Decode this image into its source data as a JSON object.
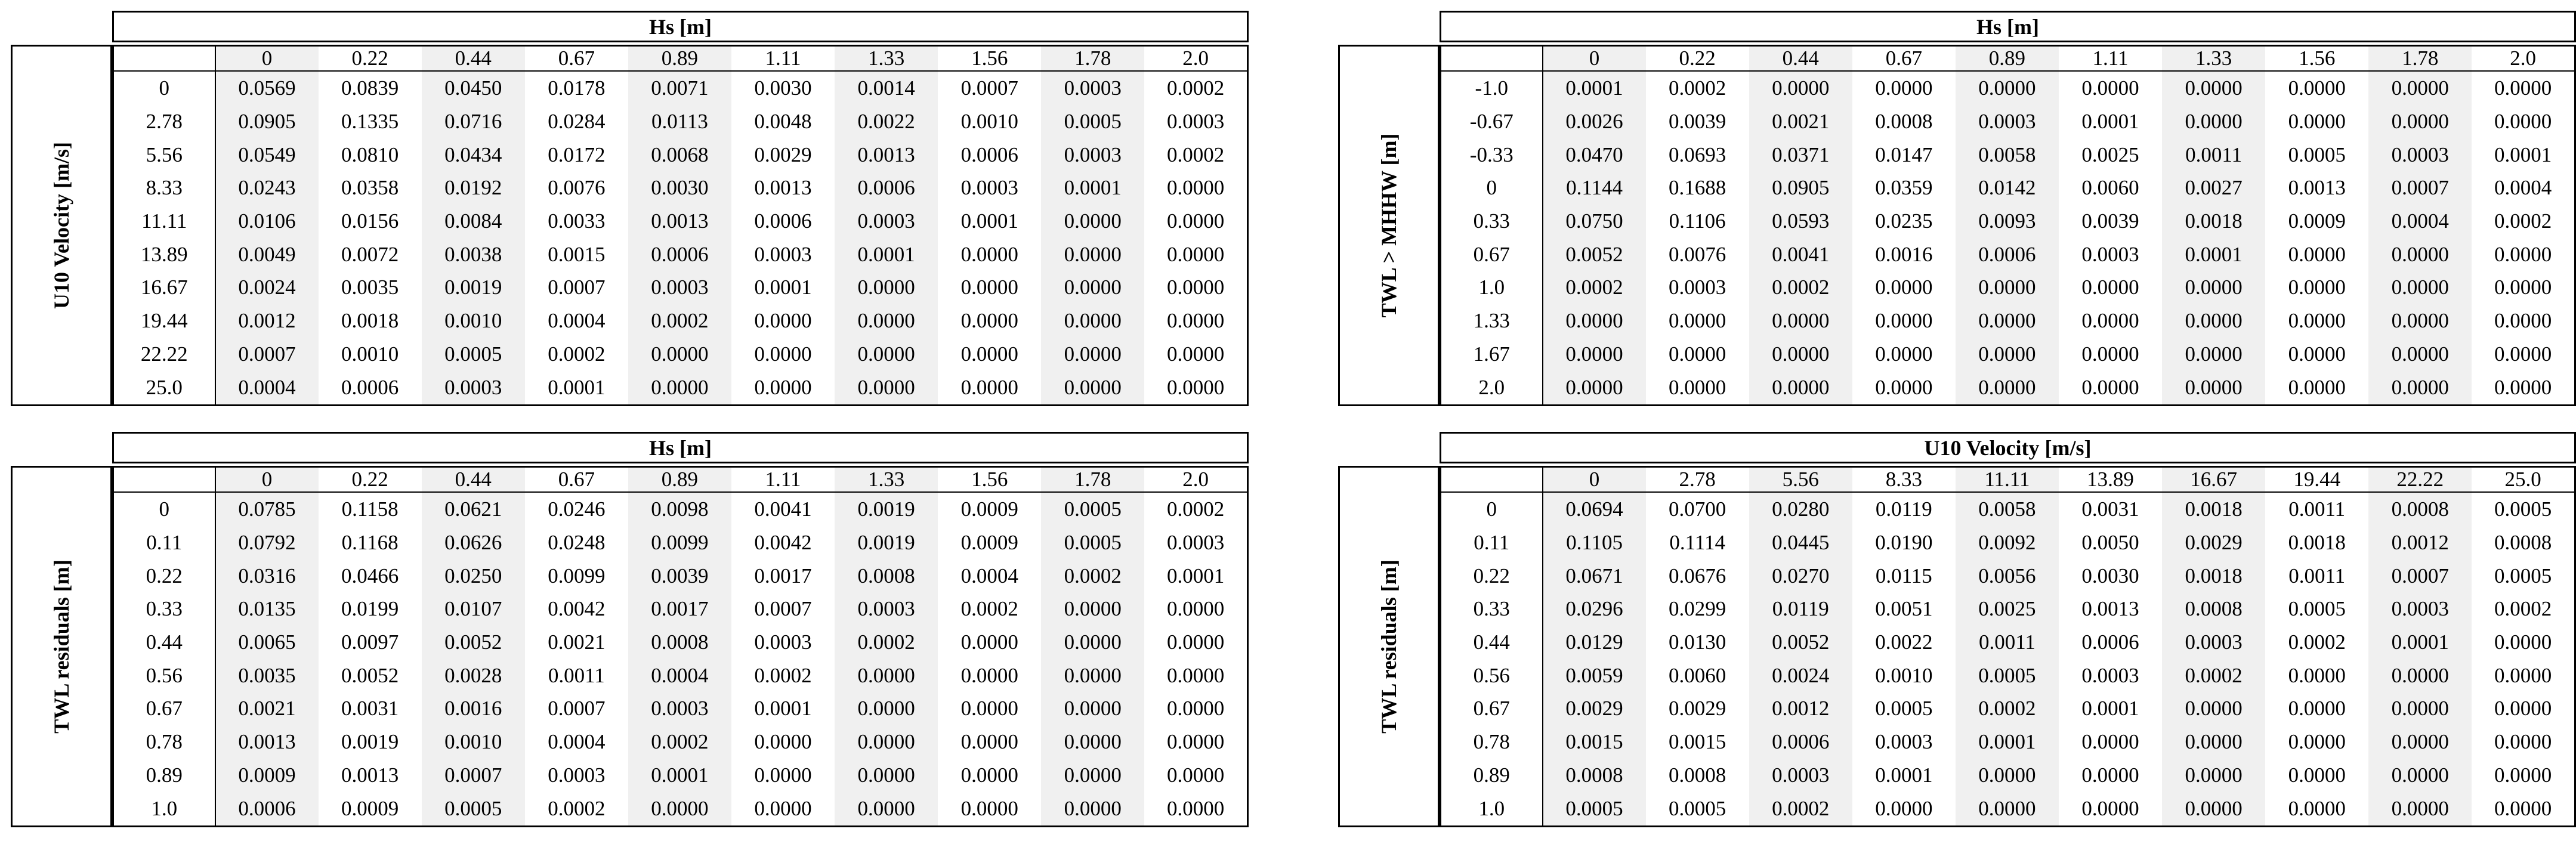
{
  "panels": [
    {
      "col_title": "Hs [m]",
      "row_title": "U10 Velocity [m/s]",
      "col_headers": [
        "0",
        "0.22",
        "0.44",
        "0.67",
        "0.89",
        "1.11",
        "1.33",
        "1.56",
        "1.78",
        "2.0"
      ],
      "row_labels": [
        "0",
        "2.78",
        "5.56",
        "8.33",
        "11.11",
        "13.89",
        "16.67",
        "19.44",
        "22.22",
        "25.0"
      ],
      "rows": [
        [
          "0.0569",
          "0.0839",
          "0.0450",
          "0.0178",
          "0.0071",
          "0.0030",
          "0.0014",
          "0.0007",
          "0.0003",
          "0.0002"
        ],
        [
          "0.0905",
          "0.1335",
          "0.0716",
          "0.0284",
          "0.0113",
          "0.0048",
          "0.0022",
          "0.0010",
          "0.0005",
          "0.0003"
        ],
        [
          "0.0549",
          "0.0810",
          "0.0434",
          "0.0172",
          "0.0068",
          "0.0029",
          "0.0013",
          "0.0006",
          "0.0003",
          "0.0002"
        ],
        [
          "0.0243",
          "0.0358",
          "0.0192",
          "0.0076",
          "0.0030",
          "0.0013",
          "0.0006",
          "0.0003",
          "0.0001",
          "0.0000"
        ],
        [
          "0.0106",
          "0.0156",
          "0.0084",
          "0.0033",
          "0.0013",
          "0.0006",
          "0.0003",
          "0.0001",
          "0.0000",
          "0.0000"
        ],
        [
          "0.0049",
          "0.0072",
          "0.0038",
          "0.0015",
          "0.0006",
          "0.0003",
          "0.0001",
          "0.0000",
          "0.0000",
          "0.0000"
        ],
        [
          "0.0024",
          "0.0035",
          "0.0019",
          "0.0007",
          "0.0003",
          "0.0001",
          "0.0000",
          "0.0000",
          "0.0000",
          "0.0000"
        ],
        [
          "0.0012",
          "0.0018",
          "0.0010",
          "0.0004",
          "0.0002",
          "0.0000",
          "0.0000",
          "0.0000",
          "0.0000",
          "0.0000"
        ],
        [
          "0.0007",
          "0.0010",
          "0.0005",
          "0.0002",
          "0.0000",
          "0.0000",
          "0.0000",
          "0.0000",
          "0.0000",
          "0.0000"
        ],
        [
          "0.0004",
          "0.0006",
          "0.0003",
          "0.0001",
          "0.0000",
          "0.0000",
          "0.0000",
          "0.0000",
          "0.0000",
          "0.0000"
        ]
      ]
    },
    {
      "col_title": "Hs [m]",
      "row_title": "TWL > MHHW [m]",
      "col_headers": [
        "0",
        "0.22",
        "0.44",
        "0.67",
        "0.89",
        "1.11",
        "1.33",
        "1.56",
        "1.78",
        "2.0"
      ],
      "row_labels": [
        "-1.0",
        "-0.67",
        "-0.33",
        "0",
        "0.33",
        "0.67",
        "1.0",
        "1.33",
        "1.67",
        "2.0"
      ],
      "rows": [
        [
          "0.0001",
          "0.0002",
          "0.0000",
          "0.0000",
          "0.0000",
          "0.0000",
          "0.0000",
          "0.0000",
          "0.0000",
          "0.0000"
        ],
        [
          "0.0026",
          "0.0039",
          "0.0021",
          "0.0008",
          "0.0003",
          "0.0001",
          "0.0000",
          "0.0000",
          "0.0000",
          "0.0000"
        ],
        [
          "0.0470",
          "0.0693",
          "0.0371",
          "0.0147",
          "0.0058",
          "0.0025",
          "0.0011",
          "0.0005",
          "0.0003",
          "0.0001"
        ],
        [
          "0.1144",
          "0.1688",
          "0.0905",
          "0.0359",
          "0.0142",
          "0.0060",
          "0.0027",
          "0.0013",
          "0.0007",
          "0.0004"
        ],
        [
          "0.0750",
          "0.1106",
          "0.0593",
          "0.0235",
          "0.0093",
          "0.0039",
          "0.0018",
          "0.0009",
          "0.0004",
          "0.0002"
        ],
        [
          "0.0052",
          "0.0076",
          "0.0041",
          "0.0016",
          "0.0006",
          "0.0003",
          "0.0001",
          "0.0000",
          "0.0000",
          "0.0000"
        ],
        [
          "0.0002",
          "0.0003",
          "0.0002",
          "0.0000",
          "0.0000",
          "0.0000",
          "0.0000",
          "0.0000",
          "0.0000",
          "0.0000"
        ],
        [
          "0.0000",
          "0.0000",
          "0.0000",
          "0.0000",
          "0.0000",
          "0.0000",
          "0.0000",
          "0.0000",
          "0.0000",
          "0.0000"
        ],
        [
          "0.0000",
          "0.0000",
          "0.0000",
          "0.0000",
          "0.0000",
          "0.0000",
          "0.0000",
          "0.0000",
          "0.0000",
          "0.0000"
        ],
        [
          "0.0000",
          "0.0000",
          "0.0000",
          "0.0000",
          "0.0000",
          "0.0000",
          "0.0000",
          "0.0000",
          "0.0000",
          "0.0000"
        ]
      ]
    },
    {
      "col_title": "Hs [m]",
      "row_title": "TWL residuals [m]",
      "col_headers": [
        "0",
        "0.22",
        "0.44",
        "0.67",
        "0.89",
        "1.11",
        "1.33",
        "1.56",
        "1.78",
        "2.0"
      ],
      "row_labels": [
        "0",
        "0.11",
        "0.22",
        "0.33",
        "0.44",
        "0.56",
        "0.67",
        "0.78",
        "0.89",
        "1.0"
      ],
      "rows": [
        [
          "0.0785",
          "0.1158",
          "0.0621",
          "0.0246",
          "0.0098",
          "0.0041",
          "0.0019",
          "0.0009",
          "0.0005",
          "0.0002"
        ],
        [
          "0.0792",
          "0.1168",
          "0.0626",
          "0.0248",
          "0.0099",
          "0.0042",
          "0.0019",
          "0.0009",
          "0.0005",
          "0.0003"
        ],
        [
          "0.0316",
          "0.0466",
          "0.0250",
          "0.0099",
          "0.0039",
          "0.0017",
          "0.0008",
          "0.0004",
          "0.0002",
          "0.0001"
        ],
        [
          "0.0135",
          "0.0199",
          "0.0107",
          "0.0042",
          "0.0017",
          "0.0007",
          "0.0003",
          "0.0002",
          "0.0000",
          "0.0000"
        ],
        [
          "0.0065",
          "0.0097",
          "0.0052",
          "0.0021",
          "0.0008",
          "0.0003",
          "0.0002",
          "0.0000",
          "0.0000",
          "0.0000"
        ],
        [
          "0.0035",
          "0.0052",
          "0.0028",
          "0.0011",
          "0.0004",
          "0.0002",
          "0.0000",
          "0.0000",
          "0.0000",
          "0.0000"
        ],
        [
          "0.0021",
          "0.0031",
          "0.0016",
          "0.0007",
          "0.0003",
          "0.0001",
          "0.0000",
          "0.0000",
          "0.0000",
          "0.0000"
        ],
        [
          "0.0013",
          "0.0019",
          "0.0010",
          "0.0004",
          "0.0002",
          "0.0000",
          "0.0000",
          "0.0000",
          "0.0000",
          "0.0000"
        ],
        [
          "0.0009",
          "0.0013",
          "0.0007",
          "0.0003",
          "0.0001",
          "0.0000",
          "0.0000",
          "0.0000",
          "0.0000",
          "0.0000"
        ],
        [
          "0.0006",
          "0.0009",
          "0.0005",
          "0.0002",
          "0.0000",
          "0.0000",
          "0.0000",
          "0.0000",
          "0.0000",
          "0.0000"
        ]
      ]
    },
    {
      "col_title": "U10 Velocity [m/s]",
      "row_title": "TWL residuals [m]",
      "col_headers": [
        "0",
        "2.78",
        "5.56",
        "8.33",
        "11.11",
        "13.89",
        "16.67",
        "19.44",
        "22.22",
        "25.0"
      ],
      "row_labels": [
        "0",
        "0.11",
        "0.22",
        "0.33",
        "0.44",
        "0.56",
        "0.67",
        "0.78",
        "0.89",
        "1.0"
      ],
      "rows": [
        [
          "0.0694",
          "0.0700",
          "0.0280",
          "0.0119",
          "0.0058",
          "0.0031",
          "0.0018",
          "0.0011",
          "0.0008",
          "0.0005"
        ],
        [
          "0.1105",
          "0.1114",
          "0.0445",
          "0.0190",
          "0.0092",
          "0.0050",
          "0.0029",
          "0.0018",
          "0.0012",
          "0.0008"
        ],
        [
          "0.0671",
          "0.0676",
          "0.0270",
          "0.0115",
          "0.0056",
          "0.0030",
          "0.0018",
          "0.0011",
          "0.0007",
          "0.0005"
        ],
        [
          "0.0296",
          "0.0299",
          "0.0119",
          "0.0051",
          "0.0025",
          "0.0013",
          "0.0008",
          "0.0005",
          "0.0003",
          "0.0002"
        ],
        [
          "0.0129",
          "0.0130",
          "0.0052",
          "0.0022",
          "0.0011",
          "0.0006",
          "0.0003",
          "0.0002",
          "0.0001",
          "0.0000"
        ],
        [
          "0.0059",
          "0.0060",
          "0.0024",
          "0.0010",
          "0.0005",
          "0.0003",
          "0.0002",
          "0.0000",
          "0.0000",
          "0.0000"
        ],
        [
          "0.0029",
          "0.0029",
          "0.0012",
          "0.0005",
          "0.0002",
          "0.0001",
          "0.0000",
          "0.0000",
          "0.0000",
          "0.0000"
        ],
        [
          "0.0015",
          "0.0015",
          "0.0006",
          "0.0003",
          "0.0001",
          "0.0000",
          "0.0000",
          "0.0000",
          "0.0000",
          "0.0000"
        ],
        [
          "0.0008",
          "0.0008",
          "0.0003",
          "0.0001",
          "0.0000",
          "0.0000",
          "0.0000",
          "0.0000",
          "0.0000",
          "0.0000"
        ],
        [
          "0.0005",
          "0.0005",
          "0.0002",
          "0.0000",
          "0.0000",
          "0.0000",
          "0.0000",
          "0.0000",
          "0.0000",
          "0.0000"
        ]
      ]
    }
  ],
  "colors": {
    "shade": "#f0f0f0",
    "border": "#000000"
  }
}
